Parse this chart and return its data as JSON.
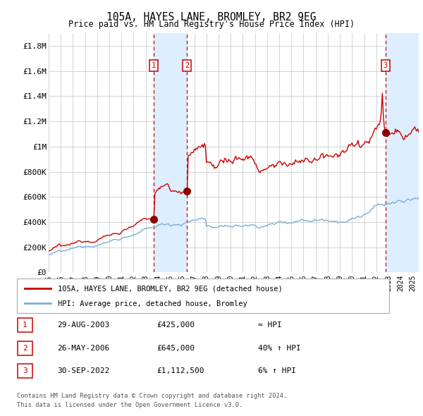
{
  "title1": "105A, HAYES LANE, BROMLEY, BR2 9EG",
  "title2": "Price paid vs. HM Land Registry's House Price Index (HPI)",
  "ylabel_ticks": [
    "£0",
    "£200K",
    "£400K",
    "£600K",
    "£800K",
    "£1M",
    "£1.2M",
    "£1.4M",
    "£1.6M",
    "£1.8M"
  ],
  "ytick_values": [
    0,
    200000,
    400000,
    600000,
    800000,
    1000000,
    1200000,
    1400000,
    1600000,
    1800000
  ],
  "ylim": [
    0,
    1900000
  ],
  "xlim_start": 1995.0,
  "xlim_end": 2025.5,
  "transaction1": {
    "date_str": "29-AUG-2003",
    "year": 2003.66,
    "price": 425000,
    "label": "1",
    "note": "≈ HPI"
  },
  "transaction2": {
    "date_str": "26-MAY-2006",
    "year": 2006.4,
    "price": 645000,
    "label": "2",
    "note": "40% ↑ HPI"
  },
  "transaction3": {
    "date_str": "30-SEP-2022",
    "year": 2022.75,
    "price": 1112500,
    "label": "3",
    "note": "6% ↑ HPI"
  },
  "legend_property": "105A, HAYES LANE, BROMLEY, BR2 9EG (detached house)",
  "legend_hpi": "HPI: Average price, detached house, Bromley",
  "footer1": "Contains HM Land Registry data © Crown copyright and database right 2024.",
  "footer2": "This data is licensed under the Open Government Licence v3.0.",
  "property_color": "#CC0000",
  "hpi_color": "#7BAFD4",
  "bg_color": "#FFFFFF",
  "grid_color": "#CCCCCC",
  "highlight_color": "#DDEEFF",
  "dashed_color": "#CC0000",
  "box_color": "#CC0000",
  "marker_color": "#8B0000"
}
